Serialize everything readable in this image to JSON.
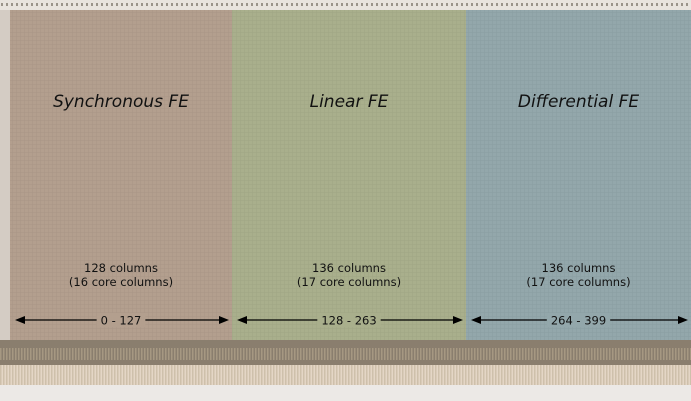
{
  "regions": [
    {
      "title": "Synchronous FE",
      "columns": "128 columns",
      "core_columns": "(16 core columns)",
      "range": "0 - 127"
    },
    {
      "title": "Linear FE",
      "columns": "136 columns",
      "core_columns": "(17 core columns)",
      "range": "128 - 263"
    },
    {
      "title": "Differential FE",
      "columns": "136 columns",
      "core_columns": "(17 core columns)",
      "range": "264 - 399"
    }
  ]
}
